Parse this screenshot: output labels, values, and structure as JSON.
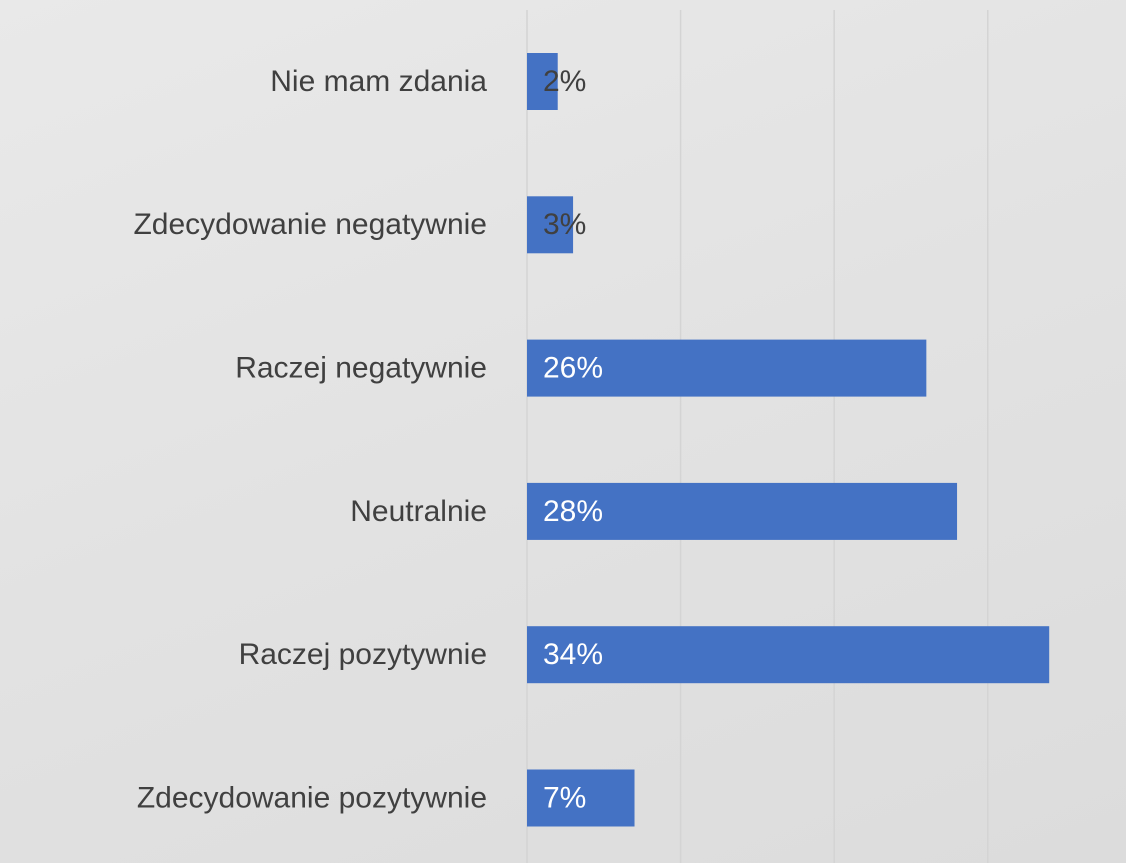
{
  "chart_data": {
    "type": "barh",
    "categories": [
      "Nie mam zdania",
      "Zdecydowanie negatywnie",
      "Raczej negatywnie",
      "Neutralnie",
      "Raczej pozytywnie",
      "Zdecydowanie pozytywnie"
    ],
    "values": [
      2,
      3,
      26,
      28,
      34,
      7
    ],
    "value_labels": [
      "2%",
      "3%",
      "26%",
      "28%",
      "34%",
      "7%"
    ],
    "color": "#4472c4",
    "xlim": [
      0,
      39
    ],
    "xticks": [
      0,
      10,
      20,
      30
    ],
    "grid": true
  }
}
